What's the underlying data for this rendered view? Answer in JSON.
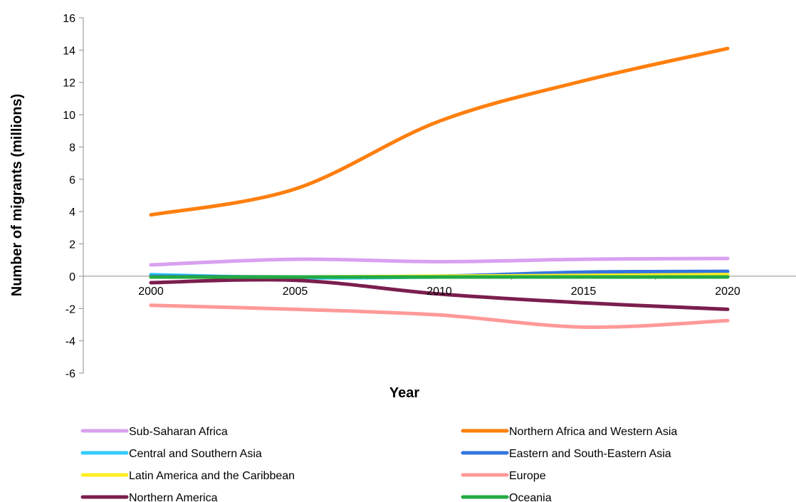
{
  "chart_data": {
    "type": "line",
    "title": "",
    "xlabel": "Year",
    "ylabel": "Number of migrants (millions)",
    "x": [
      2000,
      2005,
      2010,
      2015,
      2020
    ],
    "x_tick_labels": [
      "2000",
      "2005",
      "2010",
      "2015",
      "2020"
    ],
    "ylim": [
      -6,
      16
    ],
    "y_ticks": [
      -6,
      -4,
      -2,
      0,
      2,
      4,
      6,
      8,
      10,
      12,
      14,
      16
    ],
    "y_tick_labels": [
      "-6",
      "-4",
      "-2",
      "0",
      "2",
      "4",
      "6",
      "8",
      "10",
      "12",
      "14",
      "16"
    ],
    "grid": false,
    "smooth": true,
    "legend_position": "bottom",
    "series": [
      {
        "name": "Sub-Saharan Africa",
        "color": "#D9A0F0",
        "values": [
          0.7,
          1.05,
          0.9,
          1.05,
          1.1
        ]
      },
      {
        "name": "Northern Africa and Western Asia",
        "color": "#FF7F0E",
        "values": [
          3.8,
          5.4,
          9.6,
          12.1,
          14.1
        ]
      },
      {
        "name": "Central and Southern Asia",
        "color": "#33CCFF",
        "values": [
          0.1,
          -0.1,
          -0.05,
          0.0,
          0.0
        ]
      },
      {
        "name": "Eastern and South-Eastern Asia",
        "color": "#3375E0",
        "values": [
          0.0,
          -0.05,
          0.0,
          0.25,
          0.3
        ]
      },
      {
        "name": "Latin America and the Caribbean",
        "color": "#FFEE22",
        "values": [
          -0.05,
          -0.05,
          0.0,
          0.05,
          0.1
        ]
      },
      {
        "name": "Europe",
        "color": "#FF9999",
        "values": [
          -1.8,
          -2.05,
          -2.4,
          -3.15,
          -2.75
        ]
      },
      {
        "name": "Northern America",
        "color": "#7B1E4E",
        "values": [
          -0.4,
          -0.25,
          -1.1,
          -1.65,
          -2.05
        ]
      },
      {
        "name": "Oceania",
        "color": "#22AA44",
        "values": [
          -0.05,
          -0.05,
          -0.05,
          -0.05,
          -0.05
        ]
      }
    ]
  }
}
